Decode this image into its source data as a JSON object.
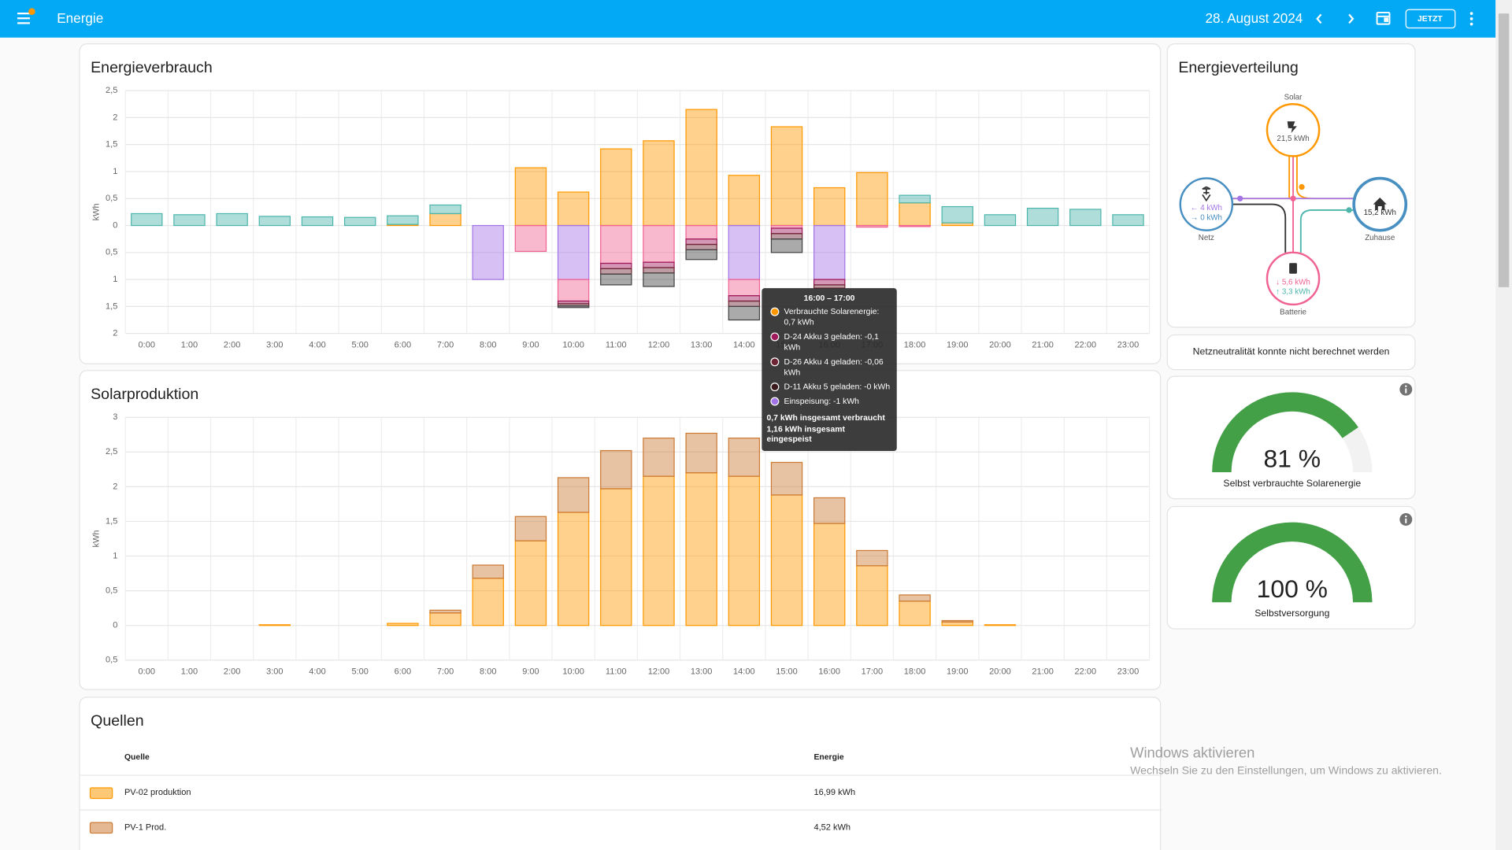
{
  "header": {
    "title": "Energie",
    "date": "28. August 2024",
    "now_button": "JETZT"
  },
  "cards": {
    "consumption": "Energieverbrauch",
    "solar": "Solarproduktion",
    "sources": "Quellen",
    "distribution": "Energieverteilung"
  },
  "chart_data": [
    {
      "type": "bar",
      "stacked": true,
      "y_label": "kWh",
      "grid": true,
      "categories": [
        "0:00",
        "1:00",
        "2:00",
        "3:00",
        "4:00",
        "5:00",
        "6:00",
        "7:00",
        "8:00",
        "9:00",
        "10:00",
        "11:00",
        "12:00",
        "13:00",
        "14:00",
        "15:00",
        "16:00",
        "17:00",
        "18:00",
        "19:00",
        "20:00",
        "21:00",
        "22:00",
        "23:00"
      ],
      "ylim": [
        -2,
        2.5
      ],
      "yticks": [
        {
          "value": -2,
          "label": "2"
        },
        {
          "value": -1.5,
          "label": "1,5"
        },
        {
          "value": -1,
          "label": "1"
        },
        {
          "value": -0.5,
          "label": "0,5"
        },
        0,
        {
          "value": 0.5,
          "label": "0,5"
        },
        1,
        {
          "value": 1.5,
          "label": "1,5"
        },
        2,
        {
          "value": 2.5,
          "label": "2,5"
        }
      ],
      "series": [
        {
          "color": "#ff9800",
          "values": [
            0,
            0,
            0,
            0,
            0,
            0,
            0.02,
            0.22,
            0,
            1.07,
            0.62,
            1.42,
            1.57,
            2.15,
            0.93,
            1.83,
            0.7,
            0.98,
            0.42,
            0.05,
            0,
            0,
            0,
            0
          ]
        },
        {
          "color": "#4db6ac",
          "values": [
            0.22,
            0.2,
            0.22,
            0.17,
            0.16,
            0.15,
            0.16,
            0.16,
            0,
            0,
            0,
            0,
            0,
            0,
            0,
            0,
            0,
            0,
            0.14,
            0.3,
            0.2,
            0.32,
            0.3,
            0.2
          ]
        },
        {
          "color": "#a374e6",
          "values": [
            0,
            0,
            0,
            0,
            0,
            0,
            0,
            0,
            -1,
            0,
            -1,
            0,
            0,
            0,
            -1,
            0,
            -1,
            0,
            0,
            0,
            0,
            0,
            0,
            0
          ]
        },
        {
          "color": "#f06292",
          "values": [
            0,
            0,
            0,
            0,
            0,
            0,
            0,
            0,
            0,
            -0.48,
            -0.4,
            -0.7,
            -0.68,
            -0.25,
            -0.3,
            -0.05,
            0,
            -0.03,
            -0.02,
            0,
            0,
            0,
            0,
            0
          ]
        },
        {
          "color": "#a0195a",
          "values": [
            0,
            0,
            0,
            0,
            0,
            0,
            0,
            0,
            0,
            0,
            -0.05,
            -0.1,
            -0.1,
            -0.1,
            -0.1,
            -0.1,
            -0.1,
            0,
            0,
            0,
            0,
            0,
            0,
            0
          ]
        },
        {
          "color": "#6e2433",
          "values": [
            0,
            0,
            0,
            0,
            0,
            0,
            0,
            0,
            0,
            0,
            -0.04,
            -0.1,
            -0.1,
            -0.1,
            -0.1,
            -0.1,
            -0.06,
            0,
            0,
            0,
            0,
            0,
            0,
            0
          ]
        },
        {
          "color": "#424242",
          "values": [
            0,
            0,
            0,
            0,
            0,
            0,
            0,
            0,
            0,
            0,
            -0.03,
            -0.2,
            -0.25,
            -0.18,
            -0.25,
            -0.25,
            0,
            0,
            0,
            0,
            0,
            0,
            0,
            0
          ]
        }
      ]
    },
    {
      "type": "bar",
      "stacked": true,
      "y_label": "kWh",
      "grid": true,
      "categories": [
        "0:00",
        "1:00",
        "2:00",
        "3:00",
        "4:00",
        "5:00",
        "6:00",
        "7:00",
        "8:00",
        "9:00",
        "10:00",
        "11:00",
        "12:00",
        "13:00",
        "14:00",
        "15:00",
        "16:00",
        "17:00",
        "18:00",
        "19:00",
        "20:00",
        "21:00",
        "22:00",
        "23:00"
      ],
      "ylim": [
        -0.5,
        3
      ],
      "yticks": [
        {
          "value": -0.5,
          "label": "0,5"
        },
        0,
        {
          "value": 0.5,
          "label": "0,5"
        },
        1,
        {
          "value": 1.5,
          "label": "1,5"
        },
        2,
        {
          "value": 2.5,
          "label": "2,5"
        },
        3
      ],
      "series": [
        {
          "color": "#ff9800",
          "values": [
            0,
            0,
            0,
            0.01,
            0,
            0,
            0.03,
            0.18,
            0.68,
            1.22,
            1.63,
            1.97,
            2.15,
            2.2,
            2.15,
            1.88,
            1.47,
            0.86,
            0.35,
            0.05,
            0.01,
            0,
            0,
            0
          ]
        },
        {
          "color": "#cc7a33",
          "values": [
            0,
            0,
            0,
            0,
            0,
            0,
            0,
            0.04,
            0.19,
            0.35,
            0.5,
            0.55,
            0.55,
            0.57,
            0.55,
            0.47,
            0.37,
            0.22,
            0.09,
            0.02,
            0,
            0,
            0,
            0
          ]
        }
      ]
    }
  ],
  "tooltip": {
    "title": "16:00 – 17:00",
    "items": [
      "Verbrauchte Solarenergie: 0,7 kWh",
      "D-24 Akku 3 geladen: -0,1 kWh",
      "D-26 Akku 4 geladen: -0,06 kWh",
      "D-11 Akku 5 geladen: -0 kWh",
      "Einspeisung: -1 kWh"
    ],
    "footer": [
      "0,7 kWh insgesamt verbraucht",
      "1,16 kWh insgesamt eingespeist"
    ]
  },
  "distribution": {
    "solar": {
      "label": "Solar",
      "value": "21,5 kWh"
    },
    "grid": {
      "label": "Netz",
      "in": "← 4 kWh",
      "out": "→ 0 kWh"
    },
    "home": {
      "label": "Zuhause",
      "value": "15,2 kWh"
    },
    "battery": {
      "label": "Batterie",
      "in": "↓ 5,6 kWh",
      "out": "↑ 3,3 kWh"
    }
  },
  "grid_neutrality": "Netzneutralität konnte nicht berechnet werden",
  "gauges": [
    {
      "value": 81,
      "value_label": "81 %",
      "label": "Selbst verbrauchte Solarenergie"
    },
    {
      "value": 100,
      "value_label": "100 %",
      "label": "Selbstversorgung"
    }
  ],
  "table": {
    "headers": [
      "Quelle",
      "Energie"
    ],
    "rows": [
      {
        "color": "#ff9800",
        "name": "PV-02 produktion",
        "energy": "16,99 kWh"
      },
      {
        "color": "#cc7a33",
        "name": "PV-1 Prod.",
        "energy": "4,52 kWh"
      }
    ]
  },
  "watermark": {
    "title": "Windows aktivieren",
    "text": "Wechseln Sie zu den Einstellungen, um Windows zu aktivieren."
  }
}
